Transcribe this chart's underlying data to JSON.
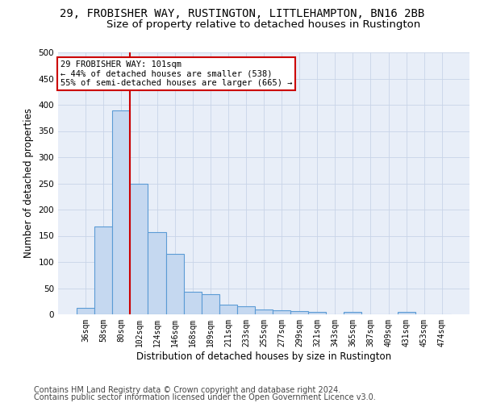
{
  "title1": "29, FROBISHER WAY, RUSTINGTON, LITTLEHAMPTON, BN16 2BB",
  "title2": "Size of property relative to detached houses in Rustington",
  "xlabel": "Distribution of detached houses by size in Rustington",
  "ylabel": "Number of detached properties",
  "categories": [
    "36sqm",
    "58sqm",
    "80sqm",
    "102sqm",
    "124sqm",
    "146sqm",
    "168sqm",
    "189sqm",
    "211sqm",
    "233sqm",
    "255sqm",
    "277sqm",
    "299sqm",
    "321sqm",
    "343sqm",
    "365sqm",
    "387sqm",
    "409sqm",
    "431sqm",
    "453sqm",
    "474sqm"
  ],
  "values": [
    13,
    167,
    390,
    249,
    157,
    115,
    43,
    39,
    18,
    15,
    10,
    7,
    6,
    4,
    0,
    5,
    0,
    0,
    5,
    0,
    0
  ],
  "bar_color": "#c5d8f0",
  "bar_edge_color": "#5b9bd5",
  "vline_x_index": 2.5,
  "annotation_text_line1": "29 FROBISHER WAY: 101sqm",
  "annotation_text_line2": "← 44% of detached houses are smaller (538)",
  "annotation_text_line3": "55% of semi-detached houses are larger (665) →",
  "annotation_box_color": "#ffffff",
  "annotation_box_edge_color": "#cc0000",
  "vline_color": "#cc0000",
  "footer1": "Contains HM Land Registry data © Crown copyright and database right 2024.",
  "footer2": "Contains public sector information licensed under the Open Government Licence v3.0.",
  "grid_color": "#c8d4e8",
  "bg_color": "#e8eef8",
  "ylim": [
    0,
    500
  ],
  "yticks": [
    0,
    50,
    100,
    150,
    200,
    250,
    300,
    350,
    400,
    450,
    500
  ],
  "title1_fontsize": 10,
  "title2_fontsize": 9.5,
  "tick_label_fontsize": 7,
  "ylabel_fontsize": 8.5,
  "xlabel_fontsize": 8.5,
  "annotation_fontsize": 7.5,
  "footer_fontsize": 7
}
